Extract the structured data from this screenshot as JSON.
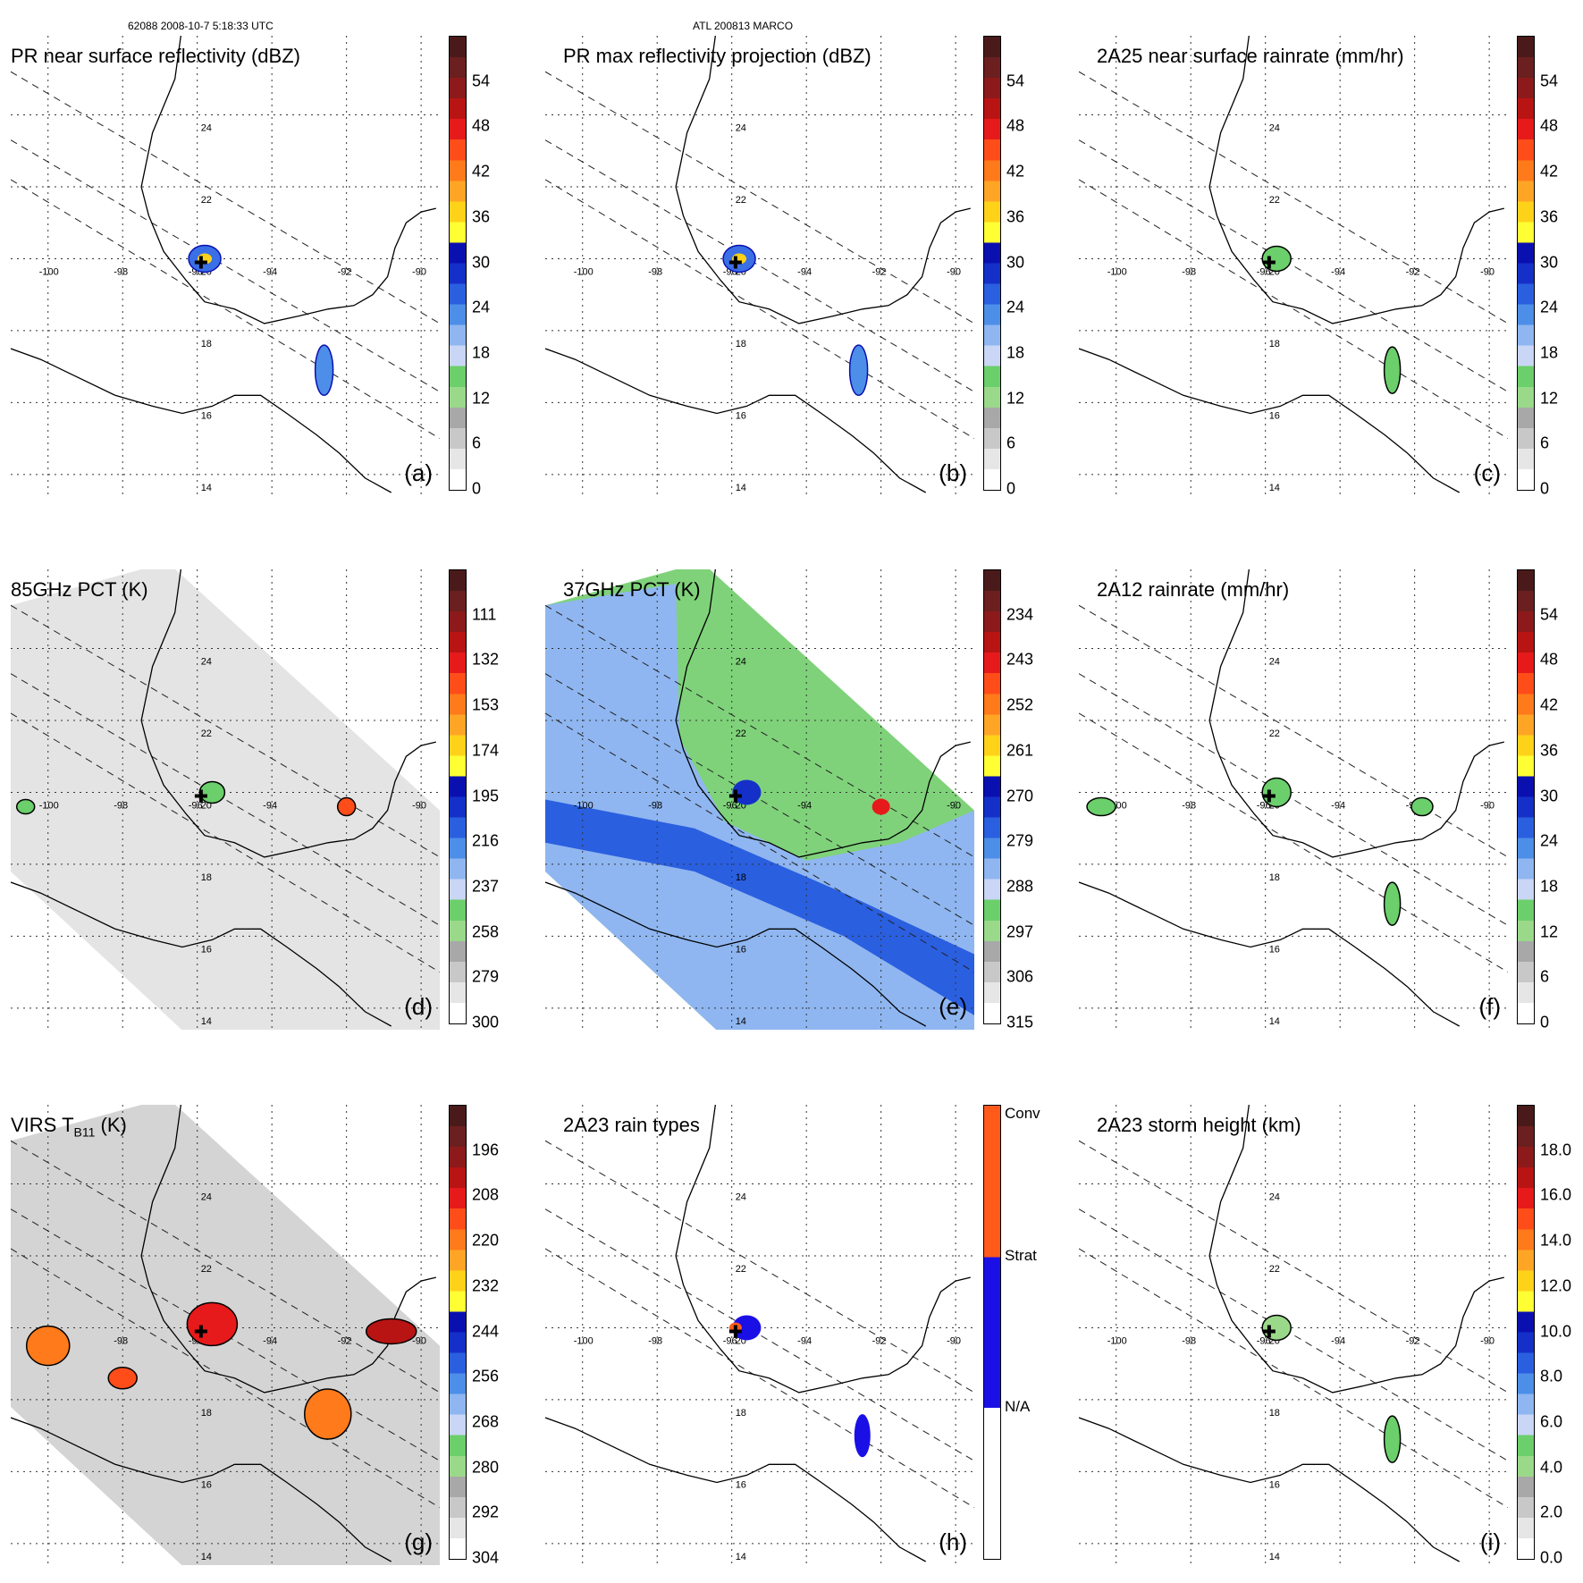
{
  "header": {
    "left": "62088 2008-10-7 5:18:33 UTC",
    "center": "ATL 200813 MARCO"
  },
  "lon_labels": [
    "-100",
    "-98",
    "-96",
    "-94",
    "-92",
    "-90"
  ],
  "lat_labels": [
    "24",
    "22",
    "20",
    "18",
    "16",
    "14"
  ],
  "panels": [
    {
      "id": "a",
      "title": "PR near surface reflectivity (dBZ)",
      "label": "(a)",
      "bg": "none",
      "cbar_ticks": [
        "0",
        "6",
        "12",
        "18",
        "24",
        "30",
        "36",
        "42",
        "48",
        "54"
      ]
    },
    {
      "id": "b",
      "title": "PR max reflectivity projection (dBZ)",
      "label": "(b)",
      "bg": "none",
      "cbar_ticks": [
        "0",
        "6",
        "12",
        "18",
        "24",
        "30",
        "36",
        "42",
        "48",
        "54"
      ]
    },
    {
      "id": "c",
      "title": "2A25 near surface rainrate (mm/hr)",
      "label": "(c)",
      "bg": "none",
      "cbar_ticks": [
        "0",
        "6",
        "12",
        "18",
        "24",
        "30",
        "36",
        "42",
        "48",
        "54"
      ]
    },
    {
      "id": "d",
      "title": "85GHz PCT (K)",
      "label": "(d)",
      "bg": "gray",
      "cbar_ticks": [
        "300",
        "279",
        "258",
        "237",
        "216",
        "195",
        "174",
        "153",
        "132",
        "111"
      ]
    },
    {
      "id": "e",
      "title": "37GHz PCT (K)",
      "label": "(e)",
      "bg": "green",
      "cbar_ticks": [
        "315",
        "306",
        "297",
        "288",
        "279",
        "270",
        "261",
        "252",
        "243",
        "234"
      ]
    },
    {
      "id": "f",
      "title": "2A12 rainrate (mm/hr)",
      "label": "(f)",
      "bg": "none",
      "cbar_ticks": [
        "0",
        "6",
        "12",
        "18",
        "24",
        "30",
        "36",
        "42",
        "48",
        "54"
      ]
    },
    {
      "id": "g",
      "title_main": "VIRS T",
      "title_sub": "B11",
      "title_end": " (K)",
      "label": "(g)",
      "bg": "virs",
      "cbar_ticks": [
        "304",
        "292",
        "280",
        "268",
        "256",
        "244",
        "232",
        "220",
        "208",
        "196"
      ]
    },
    {
      "id": "h",
      "title": "2A23 rain types",
      "label": "(h)",
      "bg": "none",
      "cbar_categories": [
        "N/A",
        "Strat",
        "Conv"
      ]
    },
    {
      "id": "i",
      "title": "2A23 storm height (km)",
      "label": "(i)",
      "bg": "none",
      "cbar_ticks": [
        "0.0",
        "2.0",
        "4.0",
        "6.0",
        "8.0",
        "10.0",
        "12.0",
        "14.0",
        "16.0",
        "18.0"
      ]
    }
  ],
  "colors": {
    "colorbar_bins": [
      "#ffffff",
      "#e6e6e6",
      "#c8c8c8",
      "#a8a8a8",
      "#9ad98a",
      "#6bcf6b",
      "#c9d6f5",
      "#8fb6f0",
      "#4d8ee8",
      "#2a5fe0",
      "#1530c8",
      "#0a10b0",
      "#ffff33",
      "#ffd21a",
      "#ffa526",
      "#ff7a1a",
      "#ff4d1a",
      "#e61a1a",
      "#b81414",
      "#8c1a1a",
      "#6b1f1f",
      "#4a1a1a"
    ],
    "raintype": [
      "#ffffff",
      "#1a10e6",
      "#ff5a1a"
    ]
  }
}
